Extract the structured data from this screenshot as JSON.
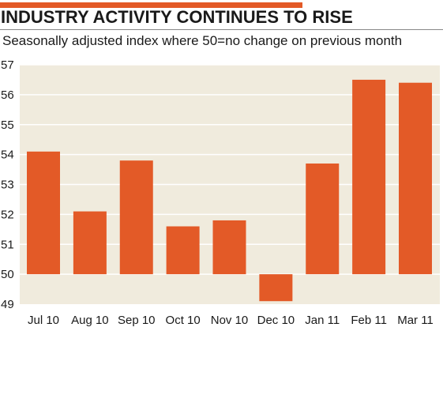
{
  "colors": {
    "accent_rule": "#e35a27",
    "bar": "#e35a27",
    "plot_bg": "#f0ebdd",
    "grid": "#ffffff",
    "text": "#1a1a1a"
  },
  "chart_data": {
    "type": "bar",
    "title": "INDUSTRY ACTIVITY CONTINUES TO RISE",
    "subtitle": "Seasonally adjusted index where 50=no change on previous month",
    "xlabel": "",
    "ylabel": "",
    "baseline": 50,
    "ylim": [
      49,
      57
    ],
    "yticks": [
      49,
      50,
      51,
      52,
      53,
      54,
      55,
      56,
      57
    ],
    "grid": true,
    "categories": [
      "Jul 10",
      "Aug 10",
      "Sep 10",
      "Oct 10",
      "Nov 10",
      "Dec 10",
      "Jan 11",
      "Feb 11",
      "Mar 11"
    ],
    "values": [
      54.1,
      52.1,
      53.8,
      51.6,
      51.8,
      49.1,
      53.7,
      56.5,
      56.4
    ]
  }
}
